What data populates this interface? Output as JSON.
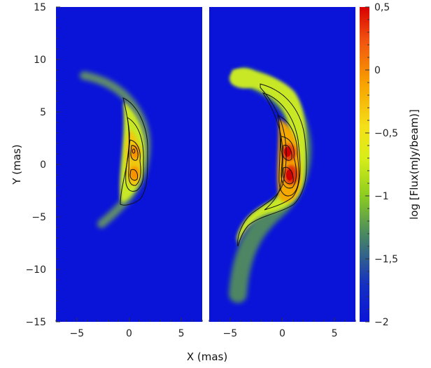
{
  "chart_data": [
    {
      "type": "heatmap",
      "panel": "left",
      "xlabel": "",
      "ylabel": "Y (mas)",
      "xlim": [
        -7,
        7
      ],
      "ylim": [
        -15,
        15
      ],
      "xticks": [
        -5,
        0,
        5
      ],
      "yticks": [
        -15,
        -10,
        -5,
        0,
        5,
        10,
        15
      ],
      "ytick_labels": [
        "−15",
        "−10",
        "−5",
        "0",
        "5",
        "10",
        "15"
      ],
      "grid": false,
      "background_level": -2,
      "features": [
        {
          "name": "arc",
          "peak_log_flux": -1.0,
          "extent_y": [
            -6,
            9
          ]
        },
        {
          "name": "upper core",
          "x": 0.4,
          "y": 1.2,
          "peak_log_flux": -0.4
        },
        {
          "name": "lower core",
          "x": 0.4,
          "y": -0.8,
          "peak_log_flux": -0.4
        }
      ],
      "contour_levels": [
        -1.2,
        -0.95,
        -0.75,
        -0.45
      ]
    },
    {
      "type": "heatmap",
      "panel": "right",
      "xlabel": "X (mas)",
      "ylabel": "",
      "xlim": [
        -7,
        7
      ],
      "ylim": [
        -15,
        15
      ],
      "xticks": [
        -5,
        0,
        5
      ],
      "grid": false,
      "background_level": -2,
      "features": [
        {
          "name": "arc",
          "peak_log_flux": -0.9,
          "extent_y": [
            -11,
            9.5
          ]
        },
        {
          "name": "upper core",
          "x": 0.5,
          "y": 1.2,
          "peak_log_flux": 0.35
        },
        {
          "name": "lower core",
          "x": 0.7,
          "y": -1.0,
          "peak_log_flux": 0.4
        }
      ],
      "contour_levels": [
        -1.2,
        -0.95,
        -0.75,
        -0.45,
        0.0
      ]
    }
  ],
  "colorbar": {
    "label": "log [Flux(mJy/beam)]",
    "range": [
      -2,
      0.5
    ],
    "ticks": [
      0.5,
      0,
      -0.5,
      -1,
      -1.5,
      -2
    ],
    "tick_labels": [
      "0,5",
      "0",
      "−0,5",
      "−1",
      "−1,5",
      "−2"
    ],
    "colors": [
      "#0a14d8",
      "#2a3fb0",
      "#6aa830",
      "#b8e81a",
      "#e8f01a",
      "#f8b000",
      "#f04010",
      "#d80000"
    ]
  },
  "xtick_labels": [
    "−5",
    "0",
    "5"
  ]
}
